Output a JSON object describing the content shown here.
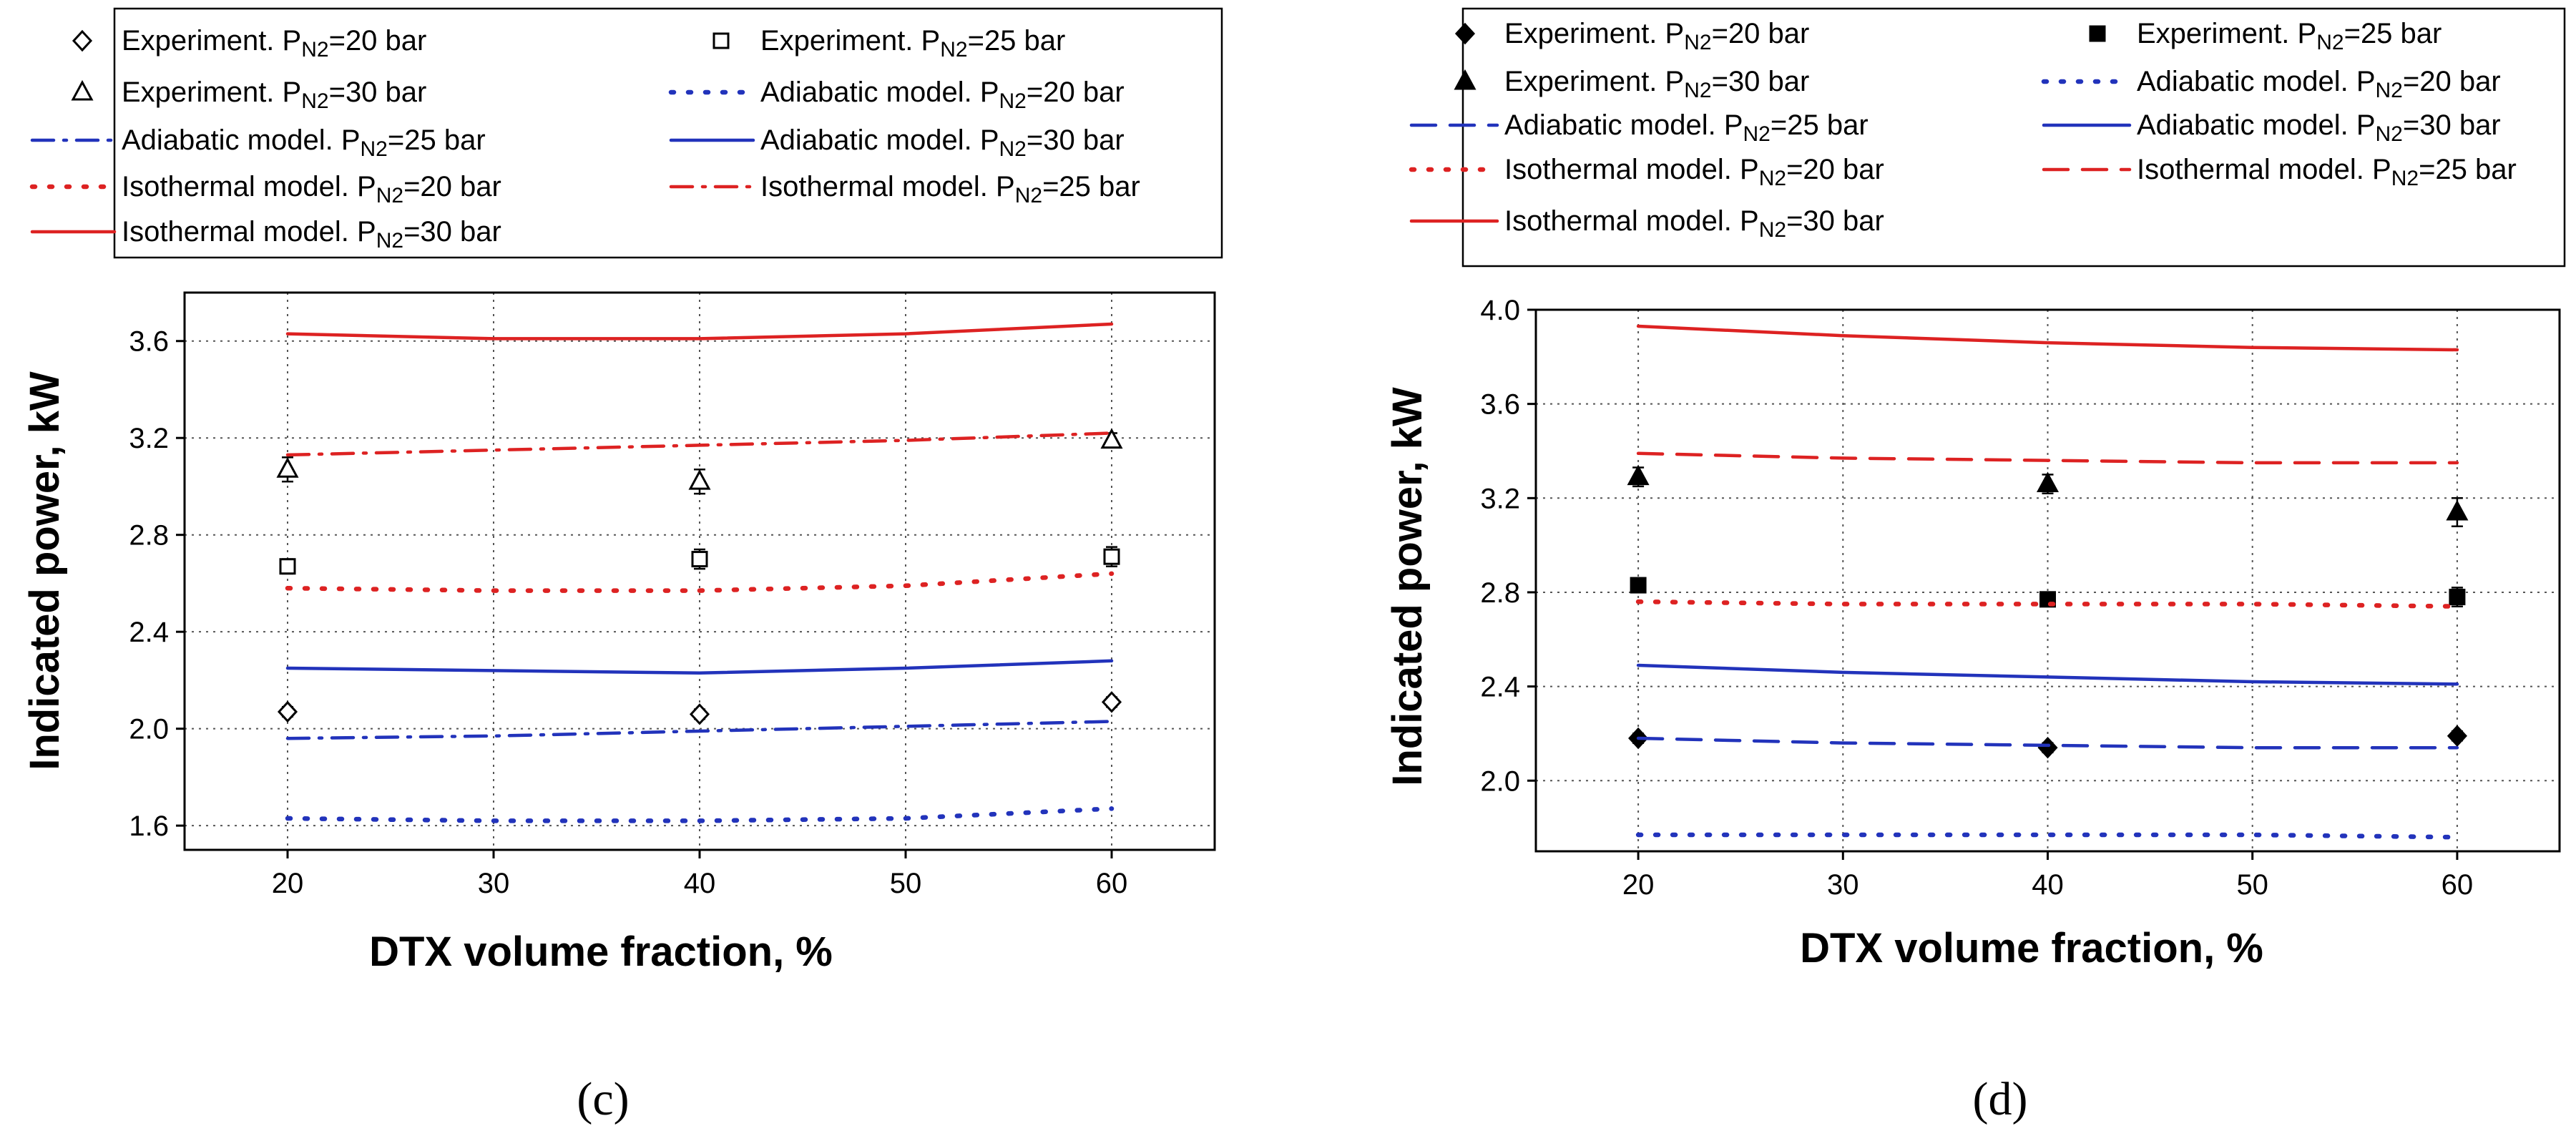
{
  "chart_data": [
    {
      "type": "line",
      "panel_label": "(c)",
      "xlabel": "DTX volume fraction, %",
      "ylabel": "Indicated power, kW",
      "xlim": [
        15,
        65
      ],
      "ylim": [
        1.5,
        3.8
      ],
      "xticks": [
        20,
        30,
        40,
        50,
        60
      ],
      "yticks": [
        1.6,
        2.0,
        2.4,
        2.8,
        3.2,
        3.6
      ],
      "tick_labels_x": [
        "20",
        "30",
        "40",
        "50",
        "60"
      ],
      "tick_labels_y": [
        "1.6",
        "2.0",
        "2.4",
        "2.8",
        "3.2",
        "3.6"
      ],
      "grid": true,
      "legend_position": "top",
      "series": [
        {
          "key": "exp20",
          "name": "Experiment. P",
          "sub": "N2",
          "tail": "=20 bar",
          "kind": "marker",
          "marker": "diamond-open",
          "color": "#000000",
          "x": [
            20,
            40,
            60
          ],
          "values": [
            2.07,
            2.06,
            2.11
          ],
          "err": [
            0.02,
            0.02,
            0.02
          ]
        },
        {
          "key": "exp25",
          "name": "Experiment. P",
          "sub": "N2",
          "tail": "=25 bar",
          "kind": "marker",
          "marker": "square-open",
          "color": "#000000",
          "x": [
            20,
            40,
            60
          ],
          "values": [
            2.67,
            2.7,
            2.71
          ],
          "err": [
            0.03,
            0.04,
            0.04
          ]
        },
        {
          "key": "exp30",
          "name": "Experiment. P",
          "sub": "N2",
          "tail": "=30 bar",
          "kind": "marker",
          "marker": "triangle-open",
          "color": "#000000",
          "x": [
            20,
            40,
            60
          ],
          "values": [
            3.07,
            3.02,
            3.19
          ],
          "err": [
            0.05,
            0.05,
            0.03
          ]
        },
        {
          "key": "adi20",
          "name": "Adiabatic model. P",
          "sub": "N2",
          "tail": "=20 bar",
          "kind": "line",
          "style": "dot",
          "color": "#2233bb",
          "x": [
            20,
            30,
            40,
            50,
            60
          ],
          "values": [
            1.63,
            1.62,
            1.62,
            1.63,
            1.67
          ]
        },
        {
          "key": "adi25",
          "name": "Adiabatic model. P",
          "sub": "N2",
          "tail": "=25 bar",
          "kind": "line",
          "style": "dashdot",
          "color": "#2233bb",
          "x": [
            20,
            30,
            40,
            50,
            60
          ],
          "values": [
            1.96,
            1.97,
            1.99,
            2.01,
            2.03
          ]
        },
        {
          "key": "adi30",
          "name": "Adiabatic model. P",
          "sub": "N2",
          "tail": "=30 bar",
          "kind": "line",
          "style": "solid",
          "color": "#2233bb",
          "x": [
            20,
            30,
            40,
            50,
            60
          ],
          "values": [
            2.25,
            2.24,
            2.23,
            2.25,
            2.28
          ]
        },
        {
          "key": "iso20",
          "name": "Isothermal model. P",
          "sub": "N2",
          "tail": "=20 bar",
          "kind": "line",
          "style": "dot",
          "color": "#dd2222",
          "x": [
            20,
            30,
            40,
            50,
            60
          ],
          "values": [
            2.58,
            2.57,
            2.57,
            2.59,
            2.64
          ]
        },
        {
          "key": "iso25",
          "name": "Isothermal model. P",
          "sub": "N2",
          "tail": "=25 bar",
          "kind": "line",
          "style": "dashdot",
          "color": "#dd2222",
          "x": [
            20,
            30,
            40,
            50,
            60
          ],
          "values": [
            3.13,
            3.15,
            3.17,
            3.19,
            3.22
          ]
        },
        {
          "key": "iso30",
          "name": "Isothermal model. P",
          "sub": "N2",
          "tail": "=30 bar",
          "kind": "line",
          "style": "solid",
          "color": "#dd2222",
          "x": [
            20,
            30,
            40,
            50,
            60
          ],
          "values": [
            3.63,
            3.61,
            3.61,
            3.63,
            3.67
          ]
        }
      ]
    },
    {
      "type": "line",
      "panel_label": "(d)",
      "xlabel": "DTX volume fraction, %",
      "ylabel": "Indicated power, kW",
      "xlim": [
        15,
        65
      ],
      "ylim": [
        1.7,
        4.0
      ],
      "xticks": [
        20,
        30,
        40,
        50,
        60
      ],
      "yticks": [
        2.0,
        2.4,
        2.8,
        3.2,
        3.6,
        4.0
      ],
      "tick_labels_x": [
        "20",
        "30",
        "40",
        "50",
        "60"
      ],
      "tick_labels_y": [
        "2.0",
        "2.4",
        "2.8",
        "3.2",
        "3.6",
        "4.0"
      ],
      "grid": true,
      "legend_position": "top",
      "series": [
        {
          "key": "exp20",
          "name": "Experiment. P",
          "sub": "N2",
          "tail": "=20 bar",
          "kind": "marker",
          "marker": "diamond-filled",
          "color": "#000000",
          "x": [
            20,
            40,
            60
          ],
          "values": [
            2.18,
            2.14,
            2.19
          ],
          "err": [
            0.02,
            0.02,
            0.02
          ]
        },
        {
          "key": "exp25",
          "name": "Experiment. P",
          "sub": "N2",
          "tail": "=25 bar",
          "kind": "marker",
          "marker": "square-filled",
          "color": "#000000",
          "x": [
            20,
            40,
            60
          ],
          "values": [
            2.83,
            2.77,
            2.78
          ],
          "err": [
            0.03,
            0.03,
            0.04
          ]
        },
        {
          "key": "exp30",
          "name": "Experiment. P",
          "sub": "N2",
          "tail": "=30 bar",
          "kind": "marker",
          "marker": "triangle-filled",
          "color": "#000000",
          "x": [
            20,
            40,
            60
          ],
          "values": [
            3.29,
            3.26,
            3.14
          ],
          "err": [
            0.04,
            0.04,
            0.06
          ]
        },
        {
          "key": "adi20",
          "name": "Adiabatic model. P",
          "sub": "N2",
          "tail": "=20 bar",
          "kind": "line",
          "style": "dot",
          "color": "#2233bb",
          "x": [
            20,
            30,
            40,
            50,
            60
          ],
          "values": [
            1.77,
            1.77,
            1.77,
            1.77,
            1.76
          ]
        },
        {
          "key": "adi25",
          "name": "Adiabatic model. P",
          "sub": "N2",
          "tail": "=25 bar",
          "kind": "line",
          "style": "dash",
          "color": "#2233bb",
          "x": [
            20,
            30,
            40,
            50,
            60
          ],
          "values": [
            2.18,
            2.16,
            2.15,
            2.14,
            2.14
          ]
        },
        {
          "key": "adi30",
          "name": "Adiabatic model. P",
          "sub": "N2",
          "tail": "=30 bar",
          "kind": "line",
          "style": "solid",
          "color": "#2233bb",
          "x": [
            20,
            30,
            40,
            50,
            60
          ],
          "values": [
            2.49,
            2.46,
            2.44,
            2.42,
            2.41
          ]
        },
        {
          "key": "iso20",
          "name": "Isothermal model. P",
          "sub": "N2",
          "tail": "=20 bar",
          "kind": "line",
          "style": "dot",
          "color": "#dd2222",
          "x": [
            20,
            30,
            40,
            50,
            60
          ],
          "values": [
            2.76,
            2.75,
            2.75,
            2.75,
            2.74
          ]
        },
        {
          "key": "iso25",
          "name": "Isothermal model. P",
          "sub": "N2",
          "tail": "=25 bar",
          "kind": "line",
          "style": "dash",
          "color": "#dd2222",
          "x": [
            20,
            30,
            40,
            50,
            60
          ],
          "values": [
            3.39,
            3.37,
            3.36,
            3.35,
            3.35
          ]
        },
        {
          "key": "iso30",
          "name": "Isothermal model. P",
          "sub": "N2",
          "tail": "=30 bar",
          "kind": "line",
          "style": "solid",
          "color": "#dd2222",
          "x": [
            20,
            30,
            40,
            50,
            60
          ],
          "values": [
            3.93,
            3.89,
            3.86,
            3.84,
            3.83
          ]
        }
      ]
    }
  ]
}
